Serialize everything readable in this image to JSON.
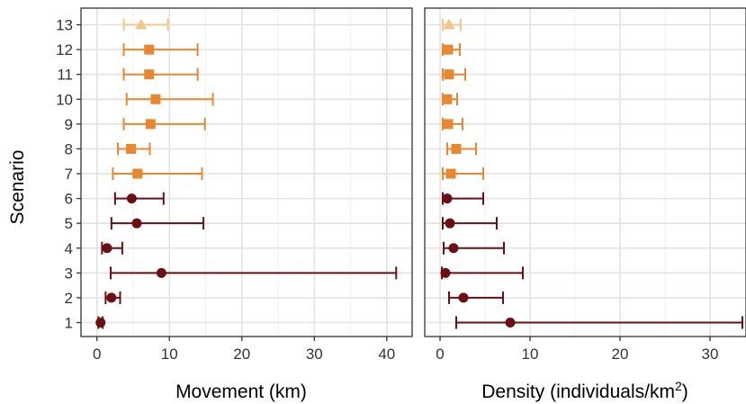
{
  "chart_data": [
    {
      "type": "scatter",
      "panel": "movement",
      "xlabel": "Movement (km)",
      "ylabel": "Scenario",
      "xlim": [
        -2.2,
        43.5
      ],
      "xticks": [
        "0",
        "10",
        "20",
        "30",
        "40"
      ],
      "yticks": [
        "1",
        "2",
        "3",
        "4",
        "5",
        "6",
        "7",
        "8",
        "9",
        "10",
        "11",
        "12",
        "13"
      ],
      "grid": true,
      "points": [
        {
          "scenario": 1,
          "est": 0.5,
          "lo": 0.2,
          "hi": 0.8,
          "shape": "circle",
          "color": "#6b0f14"
        },
        {
          "scenario": 2,
          "est": 2.0,
          "lo": 1.2,
          "hi": 3.2,
          "shape": "circle",
          "color": "#6b0f14"
        },
        {
          "scenario": 3,
          "est": 8.9,
          "lo": 1.9,
          "hi": 41.3,
          "shape": "circle",
          "color": "#6b0f14"
        },
        {
          "scenario": 4,
          "est": 1.4,
          "lo": 0.7,
          "hi": 3.5,
          "shape": "circle",
          "color": "#6b0f14"
        },
        {
          "scenario": 5,
          "est": 5.5,
          "lo": 2.0,
          "hi": 14.7,
          "shape": "circle",
          "color": "#6b0f14"
        },
        {
          "scenario": 6,
          "est": 4.8,
          "lo": 2.5,
          "hi": 9.2,
          "shape": "circle",
          "color": "#6b0f14"
        },
        {
          "scenario": 7,
          "est": 5.6,
          "lo": 2.2,
          "hi": 14.5,
          "shape": "square",
          "color": "#e8872f"
        },
        {
          "scenario": 8,
          "est": 4.7,
          "lo": 2.9,
          "hi": 7.3,
          "shape": "square",
          "color": "#e8872f"
        },
        {
          "scenario": 9,
          "est": 7.4,
          "lo": 3.7,
          "hi": 14.9,
          "shape": "square",
          "color": "#e8872f"
        },
        {
          "scenario": 10,
          "est": 8.1,
          "lo": 4.1,
          "hi": 16.0,
          "shape": "square",
          "color": "#e8872f"
        },
        {
          "scenario": 11,
          "est": 7.2,
          "lo": 3.7,
          "hi": 13.9,
          "shape": "square",
          "color": "#e8872f"
        },
        {
          "scenario": 12,
          "est": 7.2,
          "lo": 3.7,
          "hi": 13.9,
          "shape": "square",
          "color": "#e8872f"
        },
        {
          "scenario": 13,
          "est": 6.1,
          "lo": 3.7,
          "hi": 9.8,
          "shape": "triangle",
          "color": "#f5c58a"
        }
      ]
    },
    {
      "type": "scatter",
      "panel": "density",
      "xlabel": "Density (individuals/km",
      "xlabel_sup": "2",
      "xlabel_end": ")",
      "xlim": [
        -1.7,
        34.0
      ],
      "xticks": [
        "0",
        "10",
        "20",
        "30"
      ],
      "grid": true,
      "points": [
        {
          "scenario": 1,
          "est": 7.8,
          "lo": 1.8,
          "hi": 33.6,
          "shape": "circle",
          "color": "#6b0f14"
        },
        {
          "scenario": 2,
          "est": 2.6,
          "lo": 1.0,
          "hi": 7.0,
          "shape": "circle",
          "color": "#6b0f14"
        },
        {
          "scenario": 3,
          "est": 0.6,
          "lo": 0.2,
          "hi": 9.2,
          "shape": "circle",
          "color": "#6b0f14"
        },
        {
          "scenario": 4,
          "est": 1.5,
          "lo": 0.4,
          "hi": 7.1,
          "shape": "circle",
          "color": "#6b0f14"
        },
        {
          "scenario": 5,
          "est": 1.1,
          "lo": 0.3,
          "hi": 6.3,
          "shape": "circle",
          "color": "#6b0f14"
        },
        {
          "scenario": 6,
          "est": 0.8,
          "lo": 0.3,
          "hi": 4.8,
          "shape": "circle",
          "color": "#6b0f14"
        },
        {
          "scenario": 7,
          "est": 1.2,
          "lo": 0.3,
          "hi": 4.8,
          "shape": "square",
          "color": "#e8872f"
        },
        {
          "scenario": 8,
          "est": 1.8,
          "lo": 0.8,
          "hi": 4.0,
          "shape": "square",
          "color": "#e8872f"
        },
        {
          "scenario": 9,
          "est": 0.9,
          "lo": 0.3,
          "hi": 2.5,
          "shape": "square",
          "color": "#e8872f"
        },
        {
          "scenario": 10,
          "est": 0.8,
          "lo": 0.3,
          "hi": 1.9,
          "shape": "square",
          "color": "#e8872f"
        },
        {
          "scenario": 11,
          "est": 1.0,
          "lo": 0.3,
          "hi": 2.8,
          "shape": "square",
          "color": "#e8872f"
        },
        {
          "scenario": 12,
          "est": 0.9,
          "lo": 0.3,
          "hi": 2.2,
          "shape": "square",
          "color": "#e8872f"
        },
        {
          "scenario": 13,
          "est": 1.0,
          "lo": 0.3,
          "hi": 2.3,
          "shape": "triangle",
          "color": "#f5c58a"
        }
      ]
    }
  ]
}
